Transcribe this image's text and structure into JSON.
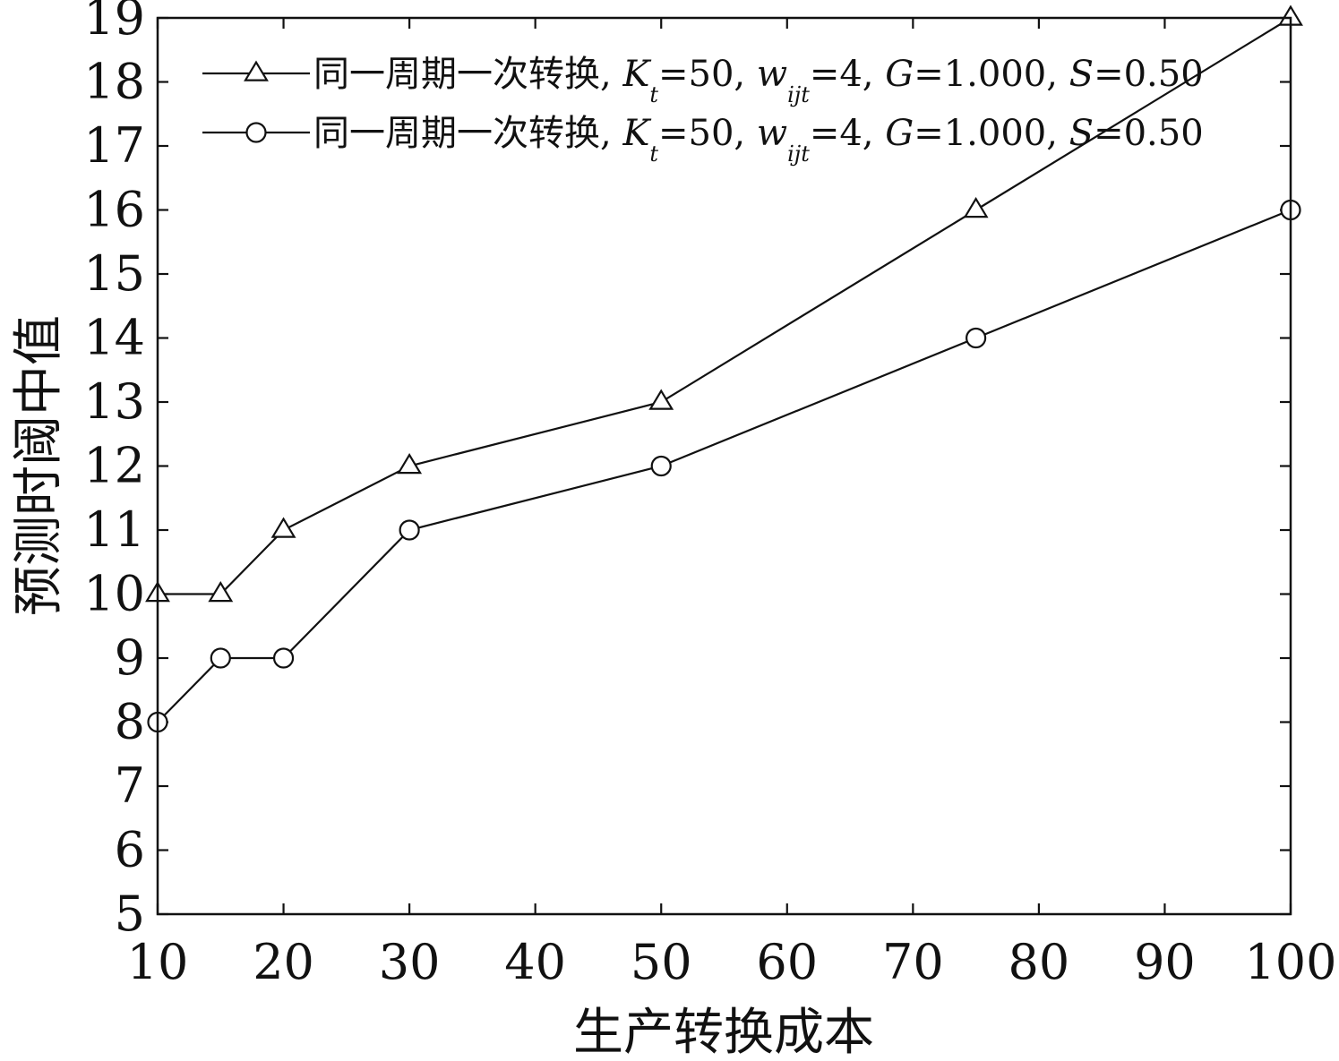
{
  "chart_data": {
    "type": "line",
    "title": "",
    "xlabel": "生产转换成本",
    "ylabel": "预测时阈中值",
    "xlim": [
      10,
      100
    ],
    "ylim": [
      5,
      19
    ],
    "xticks": [
      10,
      20,
      30,
      40,
      50,
      60,
      70,
      80,
      90,
      100
    ],
    "yticks": [
      5,
      6,
      7,
      8,
      9,
      10,
      11,
      12,
      13,
      14,
      15,
      16,
      17,
      18,
      19
    ],
    "grid": false,
    "legend_position": "top",
    "series": [
      {
        "name": "同一周期一次转换, K_t=50, w_ijt=4, G=1.000, S=0.50",
        "marker": "triangle",
        "x": [
          10,
          15,
          20,
          30,
          50,
          75,
          100
        ],
        "y": [
          10,
          10,
          11,
          12,
          13,
          16,
          19
        ]
      },
      {
        "name": "同一周期一次转换, K_t=50, w_ijt=4, G=1.000, S=0.50",
        "marker": "circle",
        "x": [
          10,
          15,
          20,
          30,
          50,
          75,
          100
        ],
        "y": [
          8,
          9,
          9,
          11,
          12,
          14,
          16
        ]
      }
    ],
    "legend": [
      {
        "prefix": "同一周期一次转换, ",
        "k": "K",
        "k_sub": "t",
        "k_val": "=50, ",
        "w": "w",
        "w_sub": "ijt",
        "w_val": "=4, ",
        "g": "G",
        "g_val": "=1.000, ",
        "s": "S",
        "s_val": "=0.50"
      },
      {
        "prefix": "同一周期一次转换, ",
        "k": "K",
        "k_sub": "t",
        "k_val": "=50, ",
        "w": "w",
        "w_sub": "ijt",
        "w_val": "=4, ",
        "g": "G",
        "g_val": "=1.000, ",
        "s": "S",
        "s_val": "=0.50"
      }
    ]
  }
}
